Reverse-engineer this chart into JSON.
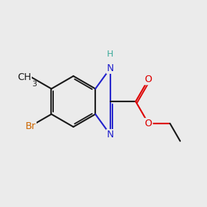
{
  "bg_color": "#ebebeb",
  "bond_color": "#1a1a1a",
  "bond_width": 1.6,
  "atom_colors": {
    "N": "#2222cc",
    "H": "#3aaa99",
    "O": "#dd0000",
    "Br": "#cc6600",
    "C": "#1a1a1a"
  },
  "font_size": 10,
  "font_size_h": 9
}
